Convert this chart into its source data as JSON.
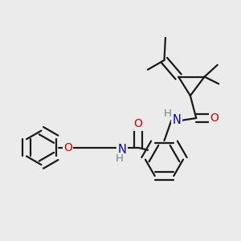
{
  "bg_color": "#ebebeb",
  "bond_color": "#1a1a1a",
  "bond_width": 1.6,
  "N_color": "#0000cc",
  "O_color": "#cc0000",
  "H_color": "#668888",
  "figsize": [
    3.0,
    3.0
  ],
  "dpi": 100,
  "xlim": [
    0,
    10
  ],
  "ylim": [
    0,
    10
  ]
}
